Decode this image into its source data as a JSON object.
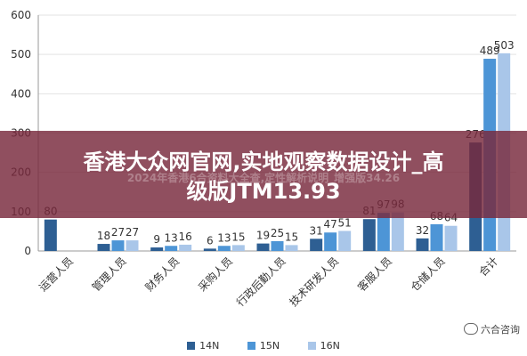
{
  "chart_data": {
    "type": "bar",
    "categories": [
      "运营人员",
      "管理人员",
      "财务人员",
      "采购人员",
      "行政后勤人员",
      "技术研发人员",
      "客服人员",
      "仓储人员",
      "合计"
    ],
    "series": [
      {
        "name": "14N",
        "color": "#2e5f93",
        "values": [
          80,
          18,
          9,
          6,
          19,
          31,
          81,
          32,
          276
        ]
      },
      {
        "name": "15N",
        "color": "#4d95d6",
        "values": [
          null,
          27,
          13,
          13,
          25,
          47,
          97,
          68,
          489
        ]
      },
      {
        "name": "16N",
        "color": "#a9c6e9",
        "values": [
          null,
          27,
          16,
          15,
          15,
          51,
          98,
          64,
          503
        ]
      }
    ],
    "data_labels": [
      [
        "80",
        "",
        ""
      ],
      [
        "18",
        "27",
        "27"
      ],
      [
        "9",
        "13",
        "16"
      ],
      [
        "6",
        "13",
        "15"
      ],
      [
        "19",
        "25",
        "15"
      ],
      [
        "31",
        "47",
        "51"
      ],
      [
        "81",
        "97",
        "98"
      ],
      [
        "32",
        "68",
        "64"
      ],
      [
        "276",
        "489",
        "503"
      ]
    ],
    "ylim": [
      0,
      600
    ],
    "yticks": [
      0,
      100,
      200,
      300,
      400,
      500,
      600
    ],
    "grid": true,
    "legend_position": "bottom"
  },
  "overlay": {
    "title_line1": "香港大众网官网,实地观察数据设计_高",
    "title_line2": "级版JTM13.93",
    "subtitle": "2024年香港6合资料大全查,定性解析说明_增强版34.26"
  },
  "watermark": {
    "text": "六合咨询",
    "icon": "wechat-icon"
  },
  "colors": {
    "axis": "#999999",
    "grid": "#e3e3e3",
    "overlay": "#782838"
  }
}
